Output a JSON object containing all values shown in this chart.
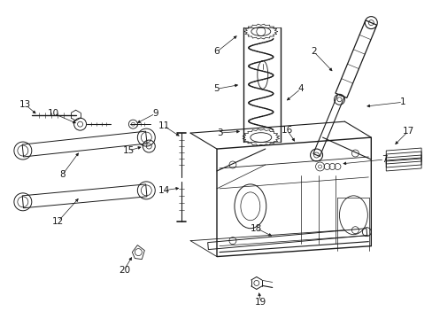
{
  "background_color": "#ffffff",
  "line_color": "#1a1a1a",
  "text_color": "#1a1a1a",
  "fig_width": 4.89,
  "fig_height": 3.6,
  "dpi": 100,
  "font_size": 7.5
}
